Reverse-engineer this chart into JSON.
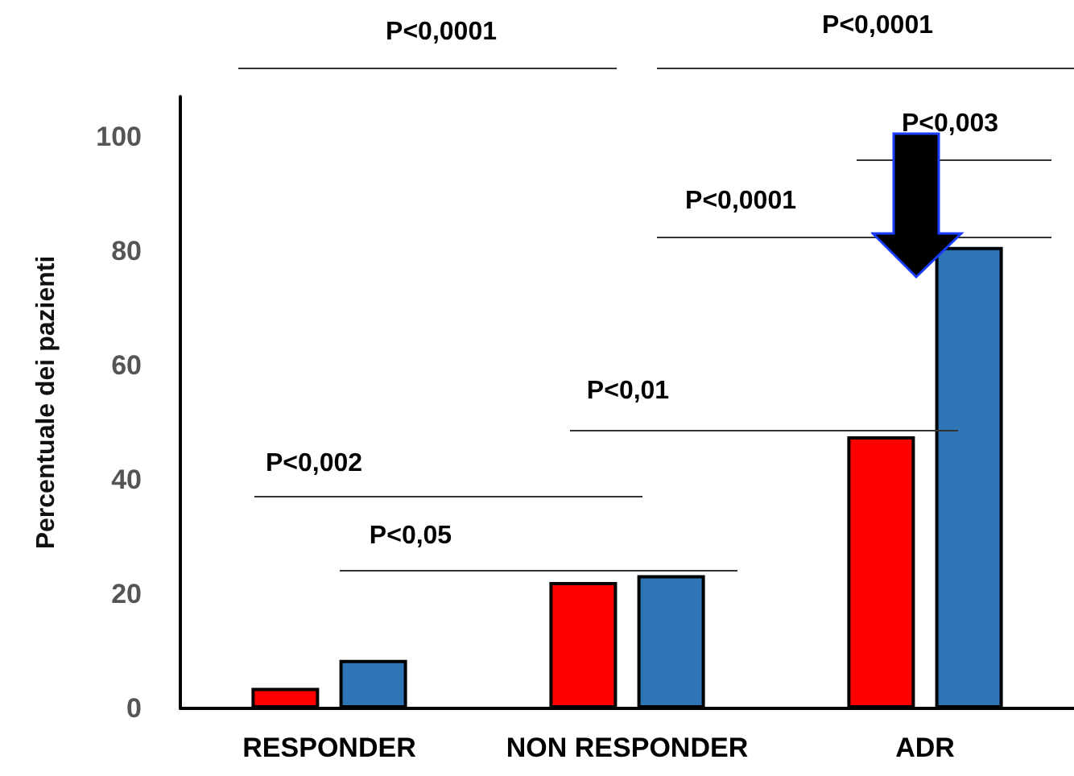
{
  "chart_data": {
    "type": "bar",
    "ylabel": "Percentuale dei pazienti",
    "categories": [
      "RESPONDER",
      "NON RESPONDER",
      "ADR"
    ],
    "series": [
      {
        "color": "#ff0000",
        "values": [
          3.6,
          22.1,
          47.6
        ]
      },
      {
        "color": "#2e75b6",
        "values": [
          8.5,
          23.3,
          80.7
        ]
      }
    ],
    "ylim": [
      0,
      107
    ],
    "yticks": [
      0,
      20,
      40,
      60,
      80,
      100
    ],
    "grid": false,
    "annotations": [
      "P<0,0001",
      "P<0,0001",
      "P<0,003",
      "P<0,0001",
      "P<0,01",
      "P<0,002",
      "P<0,05"
    ]
  }
}
